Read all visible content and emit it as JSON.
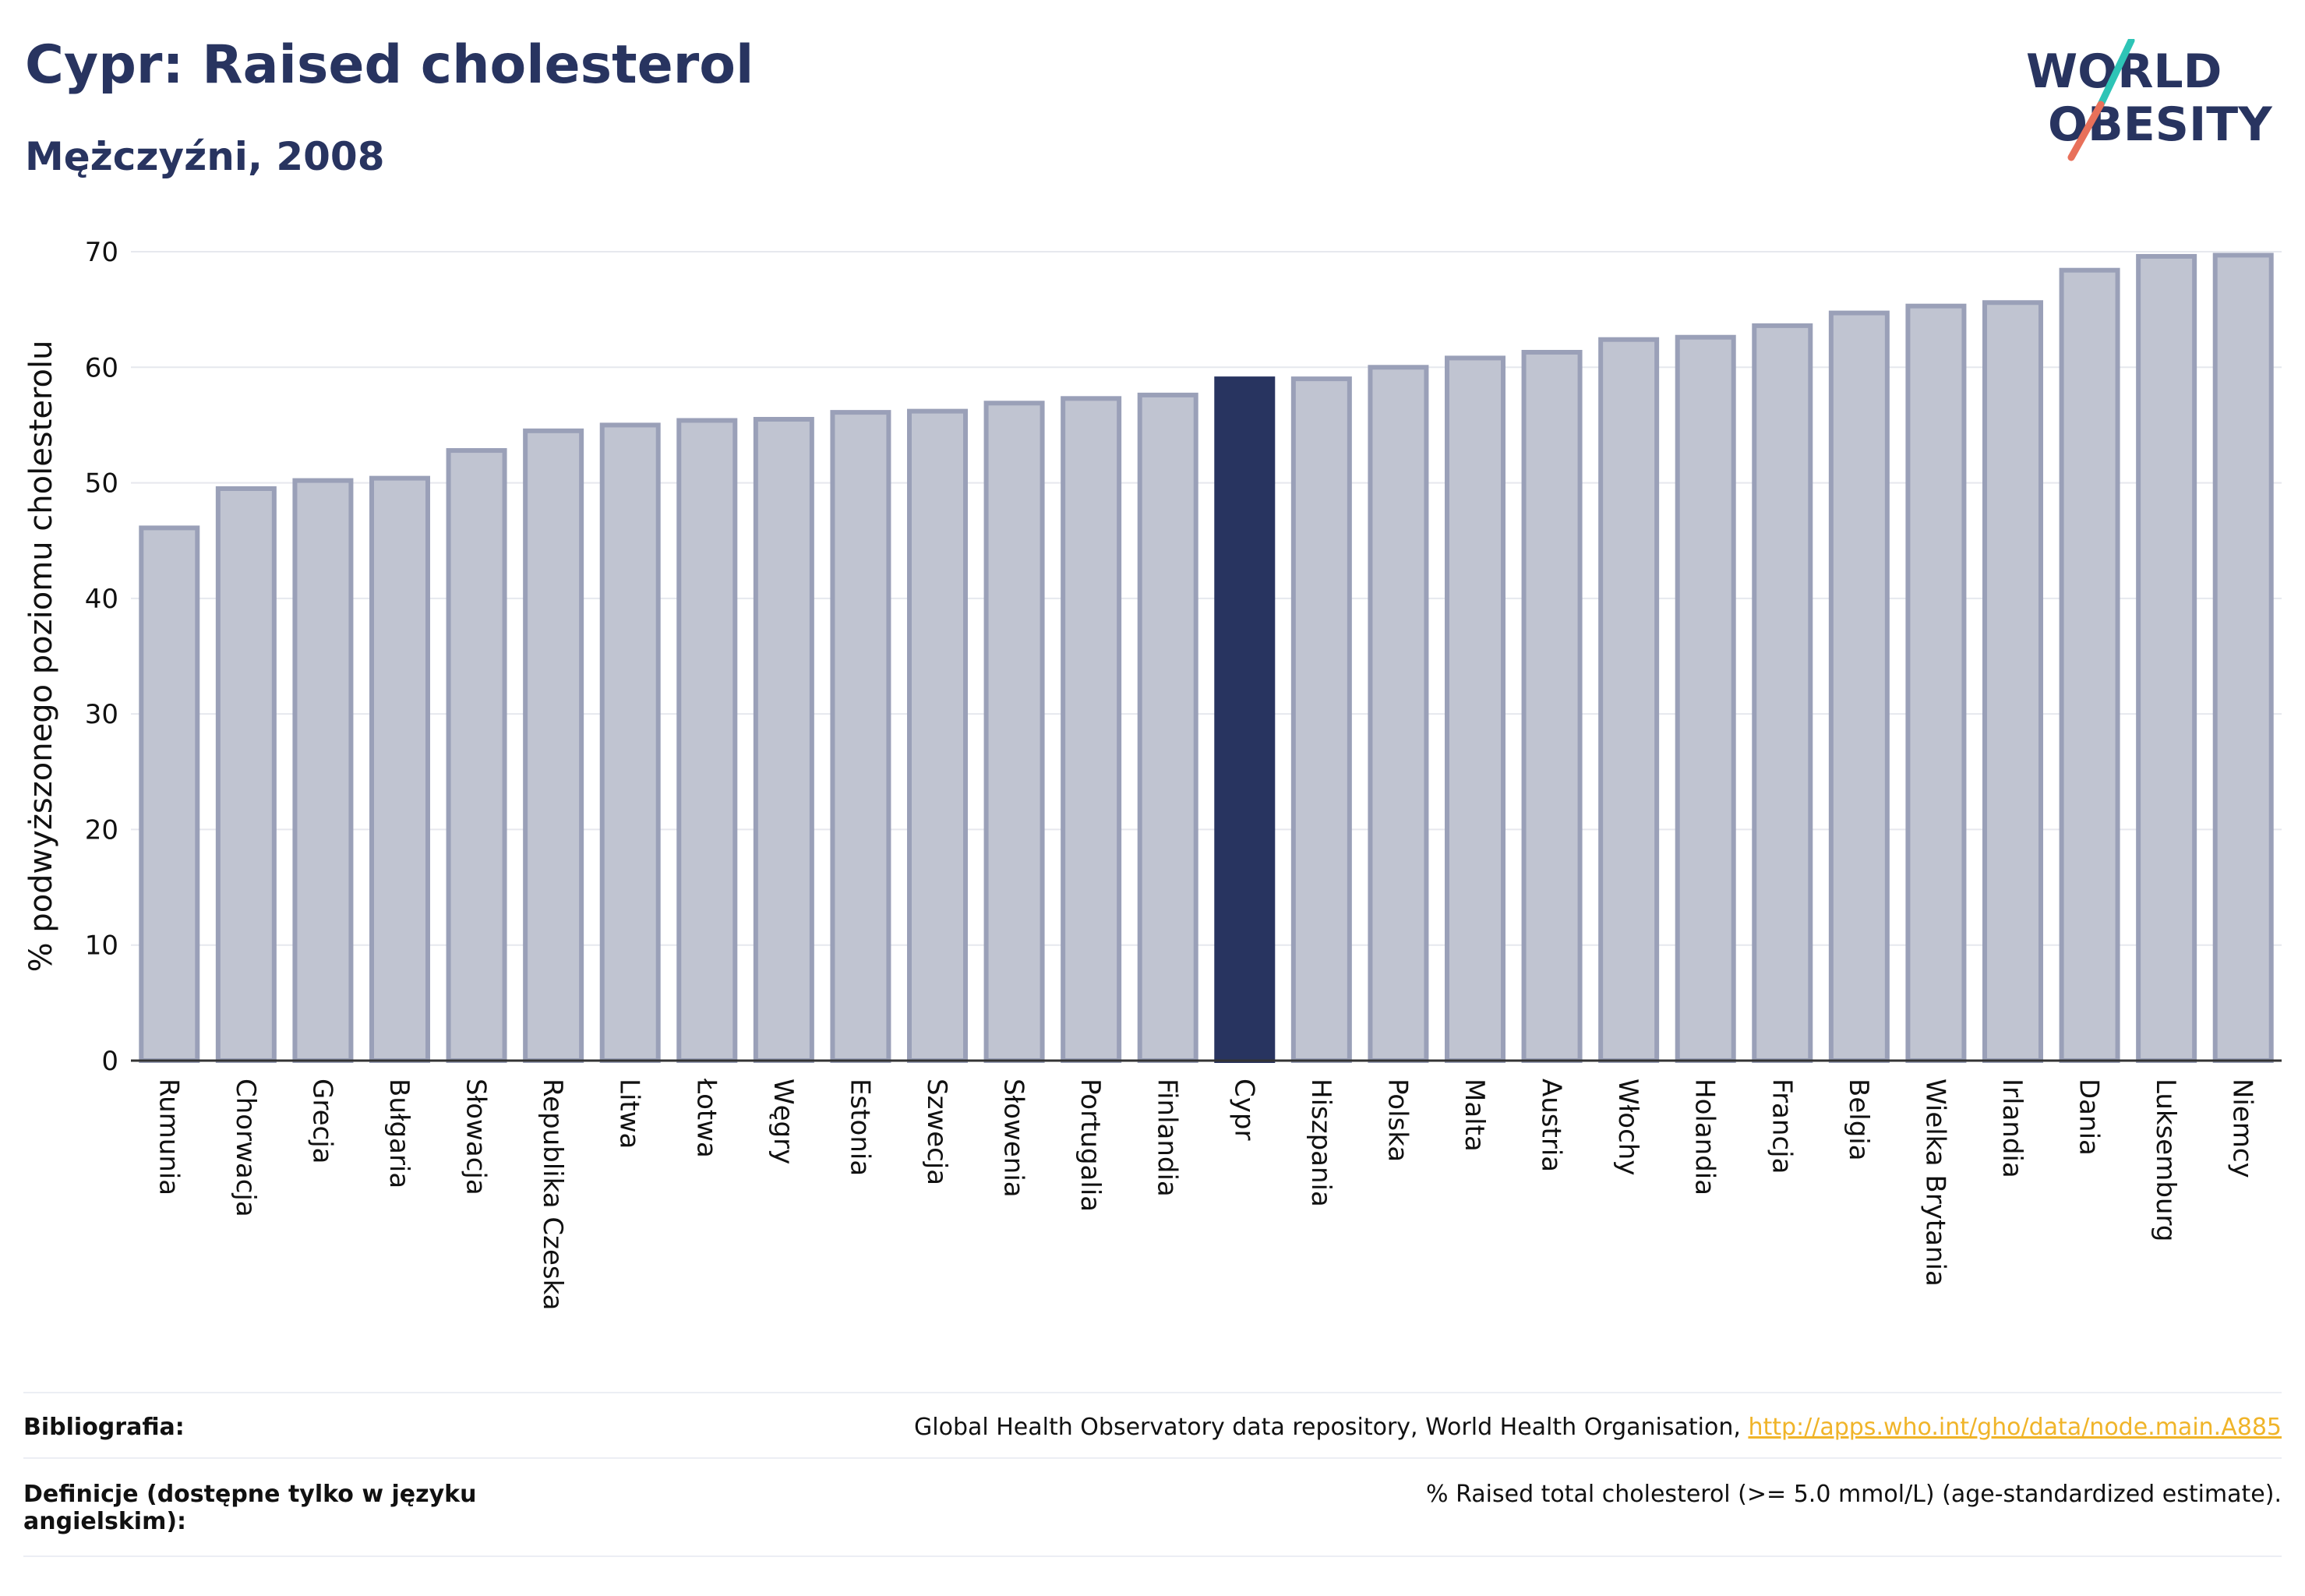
{
  "header": {
    "title": "Cypr: Raised cholesterol",
    "subtitle": "Mężczyźni, 2008"
  },
  "logo": {
    "line1": "WORLD",
    "line2": "OBESITY"
  },
  "colors": {
    "highlight": "#283460",
    "bar_fill": "#c0c4d1",
    "bar_stroke": "#9aa0b8",
    "link": "#f0b429",
    "logo_teal": "#2ec4b6",
    "logo_coral": "#e8705a"
  },
  "chart_data": {
    "type": "bar",
    "title": "Cypr: Raised cholesterol",
    "subtitle": "Mężczyźni, 2008",
    "ylabel": "% podwyższonego poziomu cholesterolu",
    "xlabel": "",
    "ylim": [
      0,
      70
    ],
    "yticks": [
      0,
      10,
      20,
      30,
      40,
      50,
      60,
      70
    ],
    "grid": true,
    "highlight": "Cypr",
    "categories": [
      "Rumunia",
      "Chorwacja",
      "Grecja",
      "Bułgaria",
      "Słowacja",
      "Republika Czeska",
      "Litwa",
      "Łotwa",
      "Węgry",
      "Estonia",
      "Szwecja",
      "Słowenia",
      "Portugalia",
      "Finlandia",
      "Cypr",
      "Hiszpania",
      "Polska",
      "Malta",
      "Austria",
      "Włochy",
      "Holandia",
      "Francja",
      "Belgia",
      "Wielka Brytania",
      "Irlandia",
      "Dania",
      "Luksemburg",
      "Niemcy"
    ],
    "values": [
      46.1,
      49.5,
      50.2,
      50.4,
      52.8,
      54.5,
      55.0,
      55.4,
      55.5,
      56.1,
      56.2,
      56.9,
      57.3,
      57.6,
      59.0,
      59.0,
      60.0,
      60.8,
      61.3,
      62.4,
      62.6,
      63.6,
      64.7,
      65.3,
      65.6,
      68.4,
      69.6,
      69.7
    ]
  },
  "footer": {
    "bibliography_label": "Bibliografia:",
    "bibliography_text": "Global Health Observatory data repository, World Health Organisation, ",
    "bibliography_link": "http://apps.who.int/gho/data/node.main.A885",
    "definitions_label": "Definicje (dostępne tylko w języku angielskim):",
    "definitions_text": "% Raised total cholesterol (>= 5.0 mmol/L) (age-standardized estimate)."
  }
}
